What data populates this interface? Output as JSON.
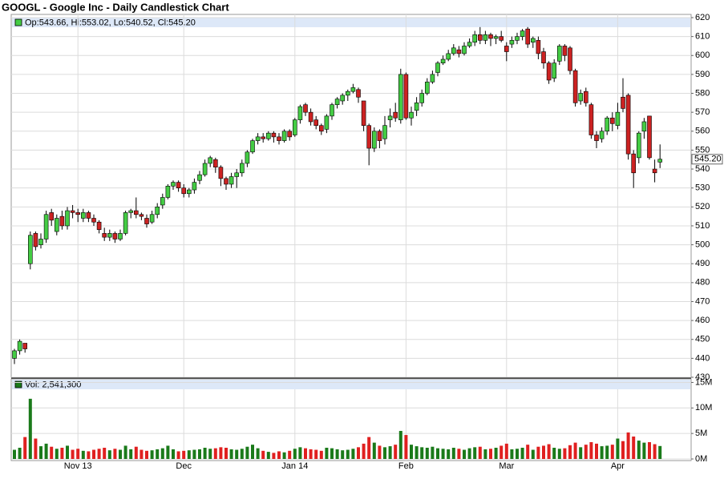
{
  "chart_data": [
    {
      "type": "candlestick",
      "title": "GOOGL - Google Inc - Daily Candlestick Chart",
      "legend_text": "Op:543.66, Hi:553.02, Lo:540.52, Cl:545.20",
      "categories": [
        null,
        null,
        null,
        null,
        null,
        null,
        null,
        null,
        null,
        null,
        null,
        null,
        "Nov 13",
        null,
        null,
        null,
        null,
        null,
        null,
        null,
        null,
        null,
        null,
        null,
        null,
        null,
        null,
        null,
        null,
        null,
        null,
        null,
        "Dec",
        null,
        null,
        null,
        null,
        null,
        null,
        null,
        null,
        null,
        null,
        null,
        null,
        null,
        null,
        null,
        null,
        null,
        null,
        null,
        null,
        "Jan 14",
        null,
        null,
        null,
        null,
        null,
        null,
        null,
        null,
        null,
        null,
        null,
        null,
        null,
        null,
        null,
        null,
        null,
        null,
        null,
        null,
        "Feb",
        null,
        null,
        null,
        null,
        null,
        null,
        null,
        null,
        null,
        null,
        null,
        null,
        null,
        null,
        null,
        null,
        null,
        null,
        "Mar",
        null,
        null,
        null,
        null,
        null,
        null,
        null,
        null,
        null,
        null,
        null,
        null,
        null,
        null,
        null,
        null,
        null,
        null,
        null,
        null,
        "Apr",
        null,
        null,
        null,
        null,
        null,
        null,
        null,
        null
      ],
      "open": [
        440,
        444,
        448,
        490,
        506,
        500,
        503,
        517,
        507,
        515,
        510,
        518,
        517,
        514,
        517,
        514,
        512,
        506,
        504,
        506,
        503,
        506,
        517,
        518,
        516,
        514,
        512,
        516,
        521,
        525,
        531,
        533,
        530,
        527,
        529,
        534,
        537,
        543,
        545,
        541,
        535,
        532,
        536,
        538,
        543,
        549,
        555,
        557,
        556,
        559,
        557,
        555,
        560,
        558,
        566,
        574,
        570,
        566,
        563,
        561,
        568,
        574,
        576,
        579,
        581,
        582,
        576,
        563,
        551,
        560,
        556,
        566,
        570,
        566,
        590,
        567,
        571,
        575,
        580,
        586,
        591,
        596,
        598,
        601,
        603,
        601,
        605,
        607,
        611,
        608,
        611,
        609,
        610,
        605,
        606,
        608,
        610,
        614,
        607,
        608,
        602,
        596,
        588,
        597,
        605,
        604,
        592,
        576,
        581,
        574,
        558,
        556,
        560,
        567,
        563,
        578,
        579,
        548,
        546,
        560,
        568,
        540,
        543.66
      ],
      "high": [
        445,
        450,
        447,
        507,
        507,
        506,
        518,
        519,
        516,
        518,
        520,
        521,
        519,
        519,
        518,
        516,
        513,
        509,
        508,
        507,
        508,
        518,
        519,
        525,
        517,
        516,
        518,
        522,
        527,
        532,
        534,
        534,
        532,
        530,
        535,
        539,
        545,
        547,
        546,
        542,
        536,
        538,
        540,
        545,
        550,
        556,
        559,
        559,
        560,
        560,
        559,
        561,
        561,
        567,
        574,
        575,
        572,
        568,
        564,
        569,
        575,
        578,
        580,
        582,
        585,
        583,
        576,
        564,
        562,
        561,
        568,
        572,
        575,
        593,
        591,
        573,
        578,
        582,
        588,
        592,
        597,
        600,
        603,
        606,
        605,
        607,
        609,
        613,
        615,
        613,
        612,
        611,
        613,
        607,
        610,
        612,
        614,
        615,
        610,
        610,
        604,
        597,
        598,
        606,
        606,
        605,
        593,
        582,
        583,
        575,
        560,
        562,
        568,
        570,
        575,
        588,
        580,
        550,
        560,
        567,
        568,
        545,
        553.02
      ],
      "low": [
        437,
        442,
        443,
        487,
        497,
        498,
        501,
        510,
        505,
        508,
        508,
        514,
        512,
        512,
        512,
        510,
        506,
        502,
        502,
        501,
        502,
        505,
        514,
        514,
        513,
        509,
        511,
        514,
        519,
        524,
        529,
        528,
        525,
        525,
        527,
        532,
        536,
        541,
        538,
        531,
        529,
        530,
        530,
        536,
        541,
        548,
        553,
        554,
        555,
        554,
        553,
        554,
        555,
        557,
        564,
        568,
        563,
        561,
        558,
        559,
        566,
        572,
        574,
        576,
        580,
        575,
        560,
        542,
        549,
        551,
        553,
        562,
        565,
        564,
        566,
        563,
        568,
        573,
        579,
        585,
        589,
        595,
        597,
        600,
        599,
        600,
        604,
        605,
        606,
        606,
        605,
        606,
        607,
        597,
        604,
        606,
        608,
        604,
        604,
        598,
        593,
        585,
        586,
        595,
        597,
        590,
        573,
        574,
        573,
        556,
        551,
        554,
        558,
        560,
        561,
        570,
        545,
        530,
        543,
        556,
        545,
        533,
        540.52
      ],
      "close": [
        444,
        449,
        445,
        505,
        499,
        503,
        516,
        513,
        514,
        510,
        518,
        517,
        516,
        517,
        514,
        512,
        508,
        504,
        506,
        503,
        506,
        517,
        518,
        516,
        515,
        511,
        516,
        520,
        525,
        531,
        533,
        530,
        527,
        529,
        533,
        537,
        543,
        546,
        541,
        535,
        532,
        536,
        538,
        543,
        549,
        555,
        557,
        556,
        559,
        557,
        555,
        560,
        557,
        566,
        573,
        570,
        565,
        563,
        560,
        568,
        574,
        577,
        579,
        581,
        583,
        578,
        563,
        551,
        560,
        555,
        563,
        568,
        567,
        590,
        567,
        570,
        575,
        580,
        586,
        590,
        596,
        598,
        601,
        604,
        601,
        605,
        607,
        611,
        608,
        611,
        609,
        610,
        608,
        602,
        608,
        610,
        613,
        606,
        609,
        601,
        596,
        587,
        596,
        605,
        600,
        592,
        575,
        580,
        575,
        558,
        555,
        560,
        567,
        564,
        570,
        572,
        548,
        538,
        559,
        565,
        546,
        538,
        545.2
      ],
      "ylim": [
        430,
        620
      ],
      "yticks": [
        430,
        440,
        450,
        460,
        470,
        480,
        490,
        500,
        510,
        520,
        530,
        540,
        550,
        560,
        570,
        580,
        590,
        600,
        610,
        620
      ],
      "last_price": {
        "value": 545.2,
        "label": "545.20"
      },
      "up_color": "#44cc44",
      "down_color": "#cc2222",
      "grid": true
    },
    {
      "type": "bar",
      "legend_text": "Vol: 2,541,300",
      "values": [
        1.8,
        2.2,
        4.3,
        11.8,
        4.0,
        2.5,
        3.0,
        2.4,
        2.0,
        2.2,
        2.6,
        1.8,
        2.0,
        1.6,
        1.5,
        1.8,
        2.0,
        2.2,
        1.7,
        2.0,
        1.8,
        2.6,
        1.9,
        2.4,
        1.8,
        1.6,
        1.7,
        1.9,
        2.1,
        2.6,
        1.9,
        1.5,
        1.6,
        1.7,
        1.8,
        1.9,
        2.2,
        2.0,
        2.1,
        2.3,
        2.2,
        1.9,
        1.8,
        2.0,
        2.4,
        2.8,
        2.1,
        1.6,
        1.4,
        1.2,
        1.5,
        1.3,
        1.6,
        2.0,
        2.3,
        2.1,
        1.9,
        1.8,
        1.6,
        2.2,
        2.1,
        1.9,
        1.7,
        1.8,
        2.0,
        2.3,
        3.0,
        4.3,
        3.2,
        2.6,
        2.3,
        2.5,
        2.8,
        5.5,
        4.7,
        2.8,
        2.5,
        2.3,
        2.2,
        2.4,
        2.1,
        2.0,
        1.9,
        2.2,
        2.0,
        1.8,
        2.1,
        2.3,
        2.4,
        1.9,
        2.0,
        2.2,
        2.6,
        3.0,
        1.9,
        2.0,
        2.2,
        2.8,
        1.8,
        2.4,
        2.6,
        2.9,
        2.2,
        2.0,
        2.1,
        2.7,
        3.2,
        2.3,
        2.8,
        3.3,
        3.0,
        2.5,
        2.6,
        2.8,
        4.0,
        3.5,
        5.2,
        4.4,
        3.6,
        3.2,
        3.3,
        2.9,
        2.5413
      ],
      "ylim": [
        0,
        15.7
      ],
      "yticks": [
        {
          "value": 0,
          "label": "0M"
        },
        {
          "value": 5,
          "label": "5M"
        },
        {
          "value": 10,
          "label": "10M"
        },
        {
          "value": 15,
          "label": "15M"
        }
      ],
      "up_color": "#1a7a1a",
      "down_color": "#e02020",
      "grid": true
    }
  ]
}
